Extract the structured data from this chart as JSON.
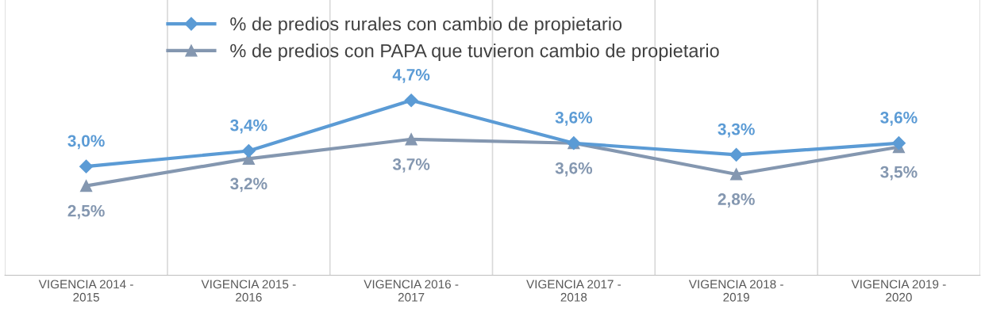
{
  "chart_data": {
    "type": "line",
    "categories": [
      "VIGENCIA 2014 -\n2015",
      "VIGENCIA 2015 -\n2016",
      "VIGENCIA 2016 -\n2017",
      "VIGENCIA 2017 -\n2018",
      "VIGENCIA 2018 -\n2019",
      "VIGENCIA 2019 -\n2020"
    ],
    "series": [
      {
        "name": "% de predios rurales con cambio de propietario",
        "color": "#5b9bd5",
        "marker": "diamond",
        "values": [
          3.0,
          3.4,
          4.7,
          3.6,
          3.3,
          3.6
        ],
        "value_labels": [
          "3,0%",
          "3,4%",
          "4,7%",
          "3,6%",
          "3,3%",
          "3,6%"
        ]
      },
      {
        "name": "% de predios con PAPA que tuvieron cambio de propietario",
        "color": "#8497b0",
        "marker": "triangle",
        "values": [
          2.5,
          3.2,
          3.7,
          3.6,
          2.8,
          3.5
        ],
        "value_labels": [
          "2,5%",
          "3,2%",
          "3,7%",
          "3,6%",
          "2,8%",
          "3,5%"
        ]
      }
    ],
    "grid": "x",
    "legend": "top",
    "tick_labels": "x"
  }
}
